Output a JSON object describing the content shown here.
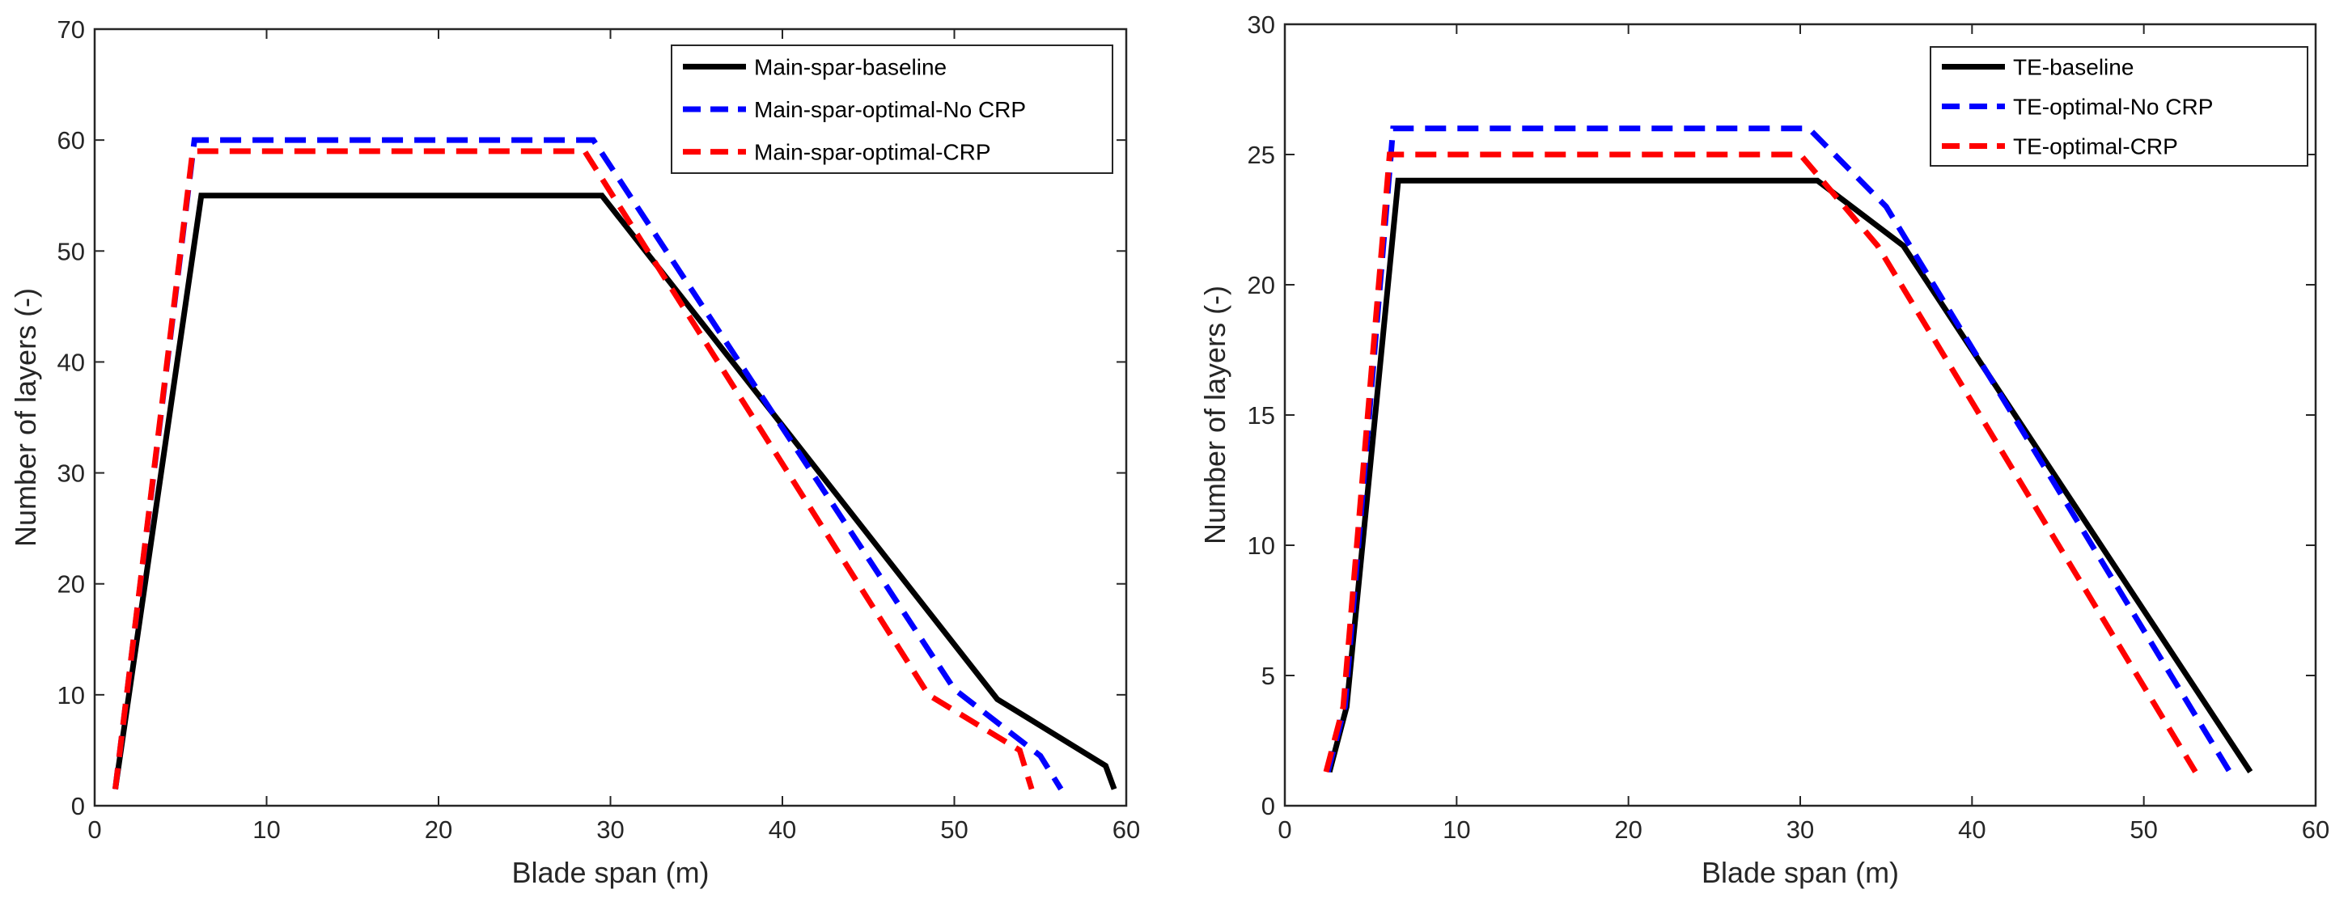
{
  "chart_data": [
    {
      "type": "line",
      "title": "",
      "xlabel": "Blade span (m)",
      "ylabel": "Number of layers (-)",
      "xlim": [
        0,
        60
      ],
      "ylim": [
        0,
        70
      ],
      "xticks": [
        0,
        10,
        20,
        30,
        40,
        50,
        60
      ],
      "yticks": [
        0,
        10,
        20,
        30,
        40,
        50,
        60,
        70
      ],
      "grid": false,
      "legend_position": "top-right",
      "series": [
        {
          "name": "Main-spar-baseline",
          "color": "#000000",
          "style": "solid",
          "x": [
            1.2,
            6.2,
            29.5,
            52.5,
            58.8,
            59.3
          ],
          "y": [
            1.5,
            55,
            55,
            9.6,
            3.6,
            1.5
          ]
        },
        {
          "name": "Main-spar-optimal-No CRP",
          "color": "#0000ff",
          "style": "dashed",
          "x": [
            1.2,
            5.8,
            29.0,
            50.0,
            55.0,
            56.2
          ],
          "y": [
            1.5,
            60,
            60,
            10.5,
            4.5,
            1.5
          ]
        },
        {
          "name": "Main-spar-optimal-CRP",
          "color": "#ff0000",
          "style": "dashed",
          "x": [
            1.2,
            5.7,
            28.5,
            48.5,
            53.8,
            54.5
          ],
          "y": [
            1.5,
            59,
            59,
            10.0,
            5.0,
            1.5
          ]
        }
      ]
    },
    {
      "type": "line",
      "title": "",
      "xlabel": "Blade span (m)",
      "ylabel": "Number of layers (-)",
      "xlim": [
        0,
        60
      ],
      "ylim": [
        0,
        30
      ],
      "xticks": [
        0,
        10,
        20,
        30,
        40,
        50,
        60
      ],
      "yticks": [
        0,
        5,
        10,
        15,
        20,
        25,
        30
      ],
      "grid": false,
      "legend_position": "top-right",
      "series": [
        {
          "name": "TE-baseline",
          "color": "#000000",
          "style": "solid",
          "x": [
            2.6,
            3.6,
            6.6,
            31.0,
            36.0,
            56.2
          ],
          "y": [
            1.3,
            3.8,
            24,
            24,
            21.5,
            1.3
          ]
        },
        {
          "name": "TE-optimal-No CRP",
          "color": "#0000ff",
          "style": "dashed",
          "x": [
            2.5,
            3.5,
            6.3,
            30.5,
            35.0,
            55.0
          ],
          "y": [
            1.3,
            3.8,
            26,
            26,
            23,
            1.3
          ]
        },
        {
          "name": "TE-optimal-CRP",
          "color": "#ff0000",
          "style": "dashed",
          "x": [
            2.4,
            3.4,
            6.1,
            30.0,
            34.5,
            53.0
          ],
          "y": [
            1.3,
            3.8,
            25,
            25,
            21.5,
            1.3
          ]
        }
      ]
    }
  ]
}
